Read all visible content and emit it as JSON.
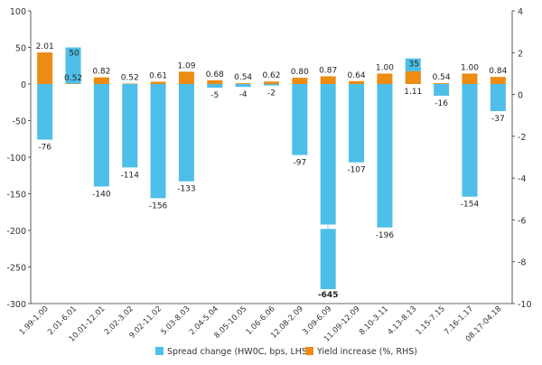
{
  "chart_data": {
    "type": "bar",
    "title": "",
    "categories": [
      "1.99-1.00",
      "2.01-6.01",
      "10.01-12.01",
      "2.02-3.02",
      "9.02-11.02",
      "5.03-8.03",
      "2.04-5.04",
      "8.05-10.05",
      "1.06-6.06",
      "12.08-2.09",
      "3.09-6.09",
      "11.09-12.09",
      "8.10-3.11",
      "4.13-8.13",
      "1.15-7.15",
      "7.16-1.17",
      "08.17-04.18"
    ],
    "series": [
      {
        "name": "Spread change (HW0C, bps, LHS)",
        "axis": "left",
        "color": "#4dbfe8",
        "values": [
          -76,
          50,
          -140,
          -114,
          -156,
          -133,
          -5,
          -4,
          -2,
          -97,
          -645,
          -107,
          -196,
          35,
          -16,
          -154,
          -37
        ],
        "labels": [
          "-76",
          "50",
          "-140",
          "-114",
          "-156",
          "-133",
          "-5",
          "-4",
          "-2",
          "-97",
          "-645",
          "-107",
          "-196",
          "35",
          "-16",
          "-154",
          "-37"
        ]
      },
      {
        "name": "Yield increase (%, RHS)",
        "axis": "right",
        "color": "#ec8c13",
        "values": [
          2.01,
          0.52,
          0.82,
          0.52,
          0.61,
          1.09,
          0.68,
          0.54,
          0.62,
          0.8,
          0.87,
          0.64,
          1.0,
          1.11,
          0.54,
          1.0,
          0.84
        ],
        "labels": [
          "2.01",
          "0.52",
          "0.82",
          "0.52",
          "0.61",
          "1.09",
          "0.68",
          "0.54",
          "0.62",
          "0.80",
          "0.87",
          "0.64",
          "1.00",
          "1.11",
          "0.54",
          "1.00",
          "0.84"
        ]
      }
    ],
    "left_axis": {
      "min": -300,
      "max": 100,
      "ticks": [
        100,
        50,
        0,
        -50,
        -100,
        -150,
        -200,
        -250,
        -300
      ],
      "tick_labels": [
        "100",
        "50",
        "0",
        "-50",
        "-100",
        "-150",
        "-200",
        "-250",
        "-300"
      ]
    },
    "right_axis": {
      "min": -10,
      "max": 4,
      "ticks": [
        4,
        2,
        0,
        -2,
        -4,
        -6,
        -8,
        -10
      ],
      "tick_labels": [
        "4",
        "2",
        "0",
        "-2",
        "-4",
        "-6",
        "-8",
        "-10"
      ]
    },
    "axis_break": {
      "series_index": 0,
      "category": "3.09-6.09",
      "label": "-645"
    },
    "legend": {
      "position": "bottom-center",
      "entries": [
        "Spread change (HW0C, bps, LHS)",
        "Yield increase (%, RHS)"
      ]
    },
    "grid": false
  }
}
